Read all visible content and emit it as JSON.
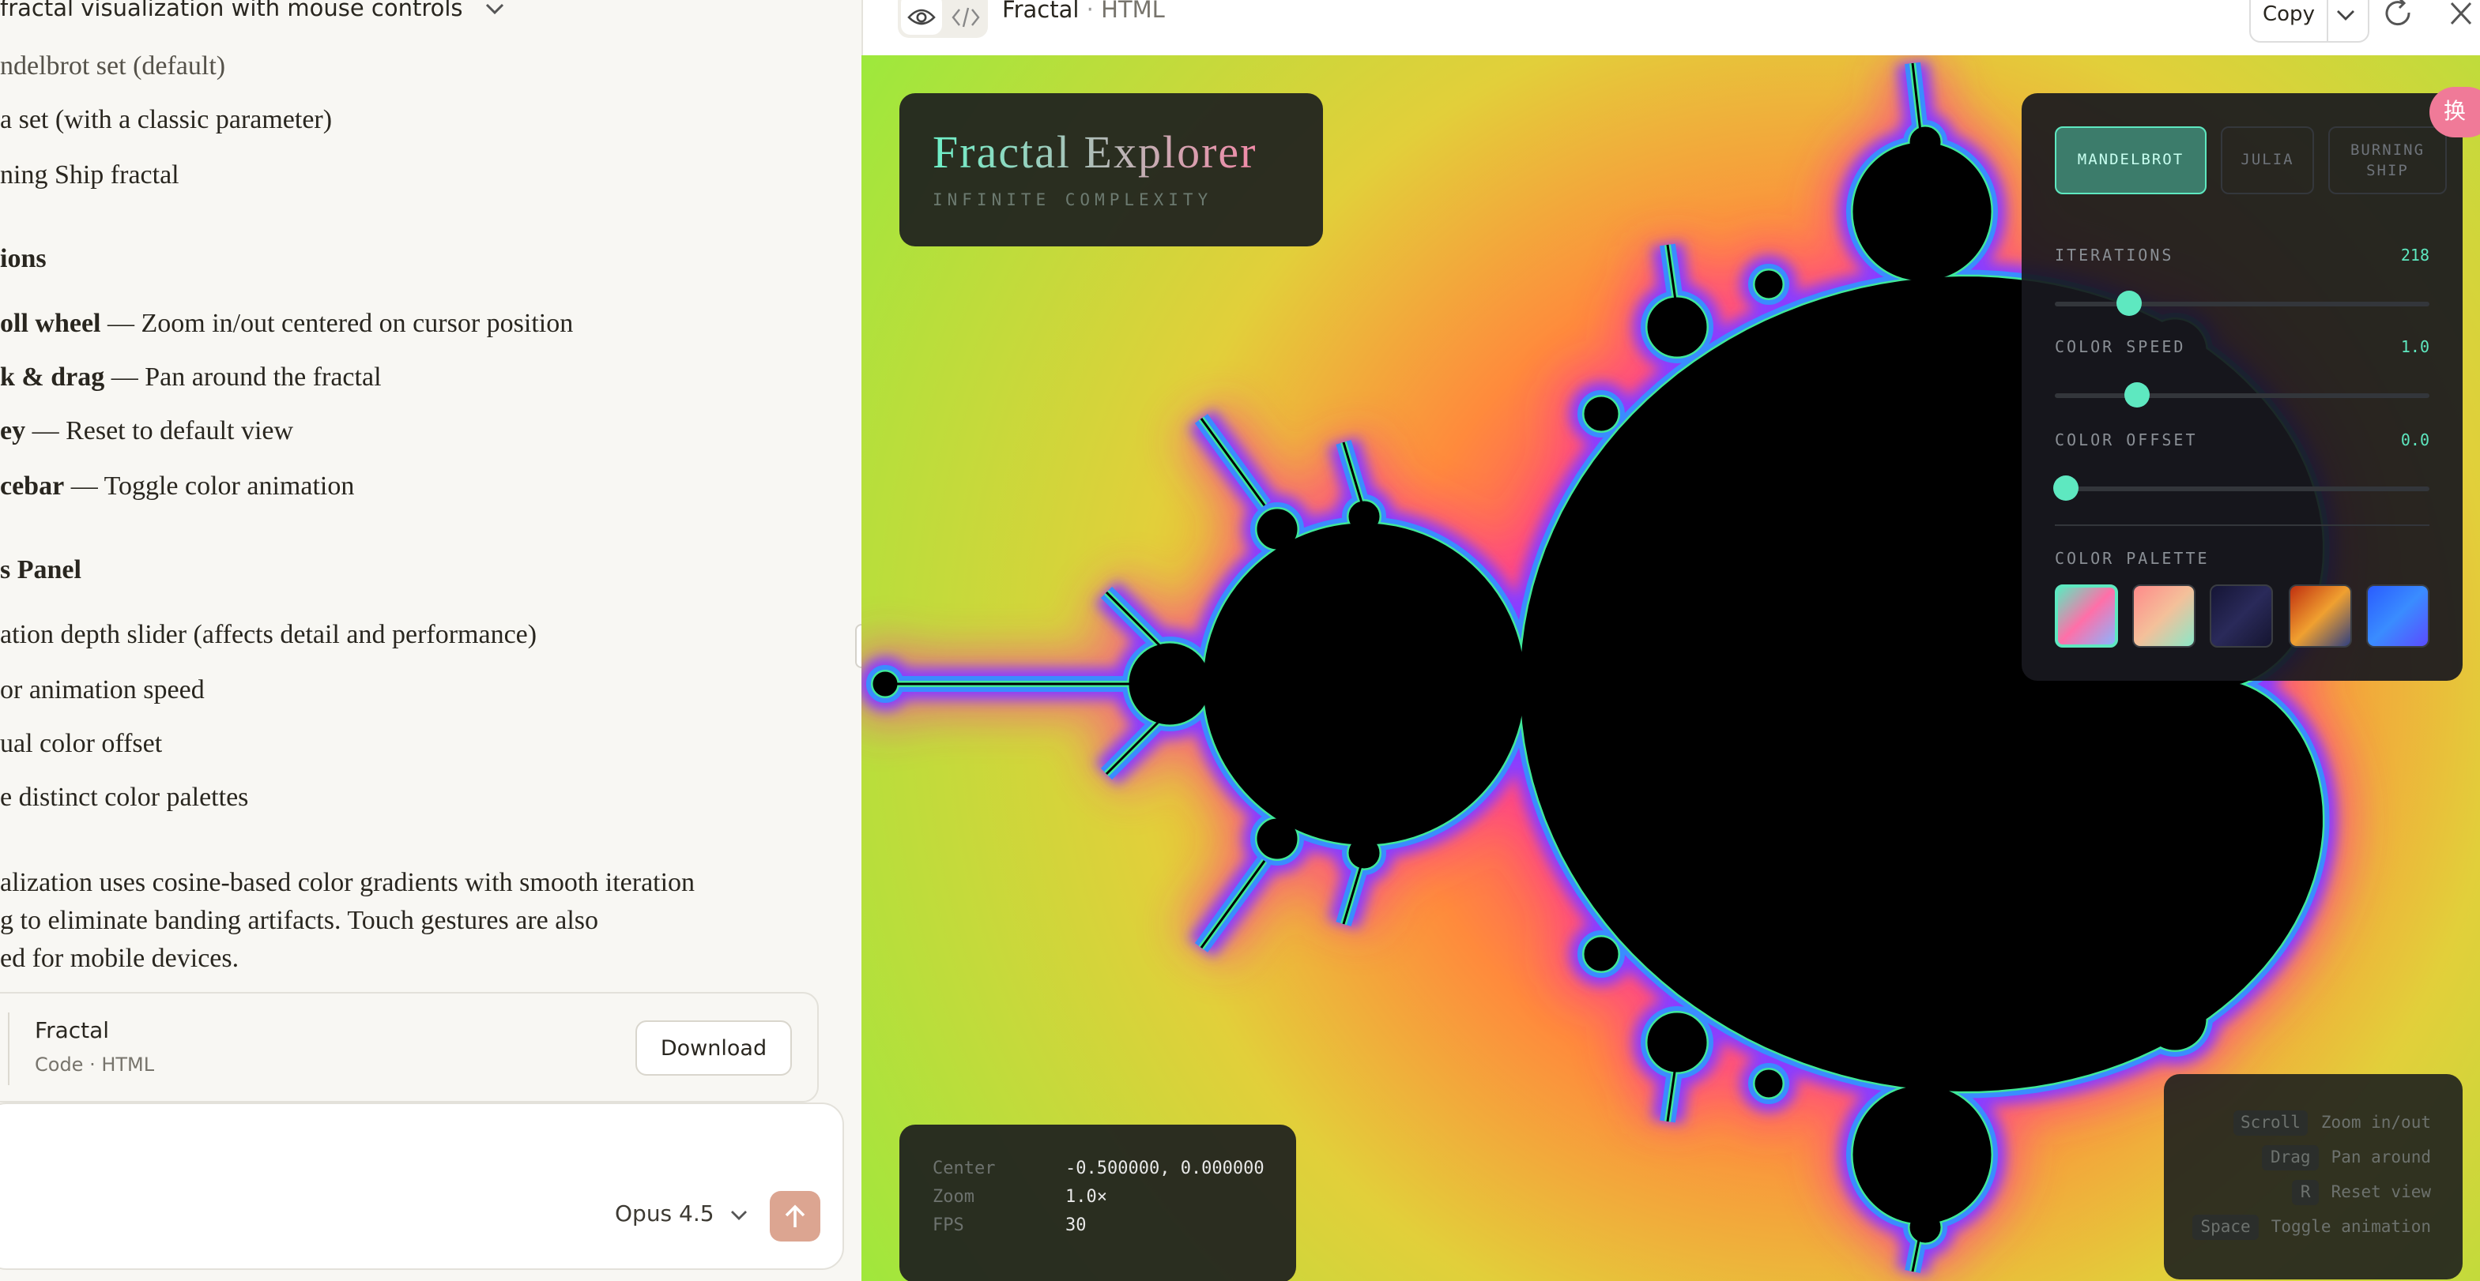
{
  "conversation": {
    "title": "fractal visualization with mouse controls",
    "fractal_types": [
      "ndelbrot set (default)",
      "a set (with a classic parameter)",
      "ning Ship fractal"
    ],
    "controls_heading": "ions",
    "controls": [
      {
        "key": "oll wheel",
        "desc": "— Zoom in/out centered on cursor position"
      },
      {
        "key": "k & drag",
        "desc": "— Pan around the fractal"
      },
      {
        "key": "ey",
        "desc": "— Reset to default view"
      },
      {
        "key": "cebar",
        "desc": "— Toggle color animation"
      }
    ],
    "panel_heading": "s Panel",
    "panel_items": [
      "ation depth slider (affects detail and performance)",
      "or animation speed",
      "ual color offset",
      "e distinct color palettes"
    ],
    "paragraph": [
      "alization uses cosine-based color gradients with smooth iteration",
      "g to eliminate banding artifacts. Touch gestures are also",
      "ed for mobile devices."
    ],
    "artifact": {
      "title": "Fractal",
      "subtitle": "Code · HTML",
      "button": "Download"
    },
    "model": "Opus 4.5"
  },
  "artifact_view": {
    "title": "Fractal",
    "separator": "·",
    "kind": "HTML",
    "copy": "Copy"
  },
  "fractal_app": {
    "title": "Fractal Explorer",
    "subtitle": "INFINITE COMPLEXITY",
    "tabs": [
      "MANDELBROT",
      "JULIA",
      "BURNING SHIP"
    ],
    "sliders": [
      {
        "label": "ITERATIONS",
        "value": 218
      },
      {
        "label": "COLOR SPEED",
        "value": "1.0"
      },
      {
        "label": "COLOR OFFSET",
        "value": "0.0"
      }
    ],
    "palette_label": "COLOR PALETTE",
    "info": [
      {
        "label": "Center",
        "value": "-0.500000, 0.000000"
      },
      {
        "label": "Zoom",
        "value": "1.0×"
      },
      {
        "label": "FPS",
        "value": 30
      }
    ],
    "help": [
      {
        "key": "Scroll",
        "action": "Zoom in/out"
      },
      {
        "key": "Drag",
        "action": "Pan around"
      },
      {
        "key": "R",
        "action": "Reset view"
      },
      {
        "key": "Space",
        "action": "Toggle animation"
      }
    ]
  },
  "badge": "换"
}
